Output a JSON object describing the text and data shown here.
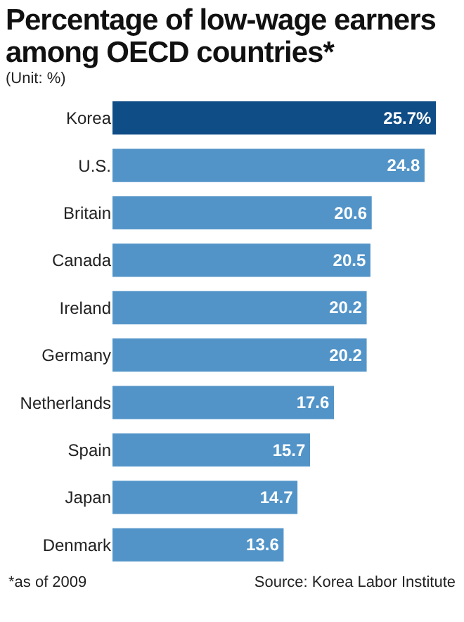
{
  "chart_data": {
    "type": "bar",
    "orientation": "horizontal",
    "title": "Percentage of low-wage earners among OECD countries*",
    "subtitle": "(Unit: %)",
    "categories": [
      "Korea",
      "U.S.",
      "Britain",
      "Canada",
      "Ireland",
      "Germany",
      "Netherlands",
      "Spain",
      "Japan",
      "Denmark"
    ],
    "values": [
      25.7,
      24.8,
      20.6,
      20.5,
      20.2,
      20.2,
      17.6,
      15.7,
      14.7,
      13.6
    ],
    "colors": [
      "#0f4d86",
      "#5294c8",
      "#5294c8",
      "#5294c8",
      "#5294c8",
      "#5294c8",
      "#5294c8",
      "#5294c8",
      "#5294c8",
      "#5294c8"
    ],
    "value_labels": [
      "25.7%",
      "24.8",
      "20.6",
      "20.5",
      "20.2",
      "20.2",
      "17.6",
      "15.7",
      "14.7",
      "13.6"
    ],
    "annotations": [
      "*as of 2009",
      "Source: Korea Labor Institute"
    ],
    "grid": false,
    "legend": false
  }
}
